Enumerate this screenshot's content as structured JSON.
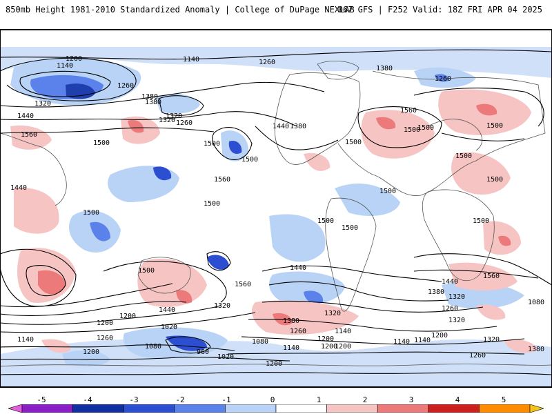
{
  "header": {
    "left": "850mb Height 1981-2010 Standardized Anomaly | College of DuPage NEXLAB",
    "right": "06Z GFS | F252 Valid: 18Z FRI APR 04 2025"
  },
  "colorbar": {
    "ticks": [
      "-5",
      "-4",
      "-3",
      "-2",
      "-1",
      "0",
      "1",
      "2",
      "3",
      "4",
      "5"
    ],
    "colors": [
      "#e060e0",
      "#8a1fc8",
      "#1030a0",
      "#2b4fd0",
      "#5a82ea",
      "#b9d3f6",
      "#ffffff",
      "#f7c4c4",
      "#ec7a7a",
      "#cc1f1f",
      "#ff8c00",
      "#f4c41a"
    ]
  },
  "contour_labels": [
    "1200",
    "1140",
    "1260",
    "1320",
    "1440",
    "1380",
    "1560",
    "1500",
    "1320",
    "1260",
    "1320",
    "1380",
    "1260",
    "1500",
    "1560",
    "1440",
    "1380",
    "1500",
    "1500",
    "1560",
    "1500",
    "1500",
    "1500",
    "1500",
    "1500",
    "1500",
    "1500",
    "1500",
    "1500",
    "1500",
    "1380",
    "1500",
    "1440",
    "1500",
    "1440",
    "1560",
    "1560",
    "1440",
    "1380",
    "1320",
    "1260",
    "1080",
    "1140",
    "1200",
    "1320",
    "1200",
    "1440",
    "1320",
    "1380",
    "1320",
    "1260",
    "1200",
    "1140",
    "1260",
    "1200",
    "1140",
    "1020",
    "1080",
    "960",
    "1020",
    "1080",
    "1140",
    "1200",
    "1140",
    "1200",
    "1320",
    "1380",
    "1260",
    "1260",
    "1140",
    "1200",
    "1200"
  ]
}
